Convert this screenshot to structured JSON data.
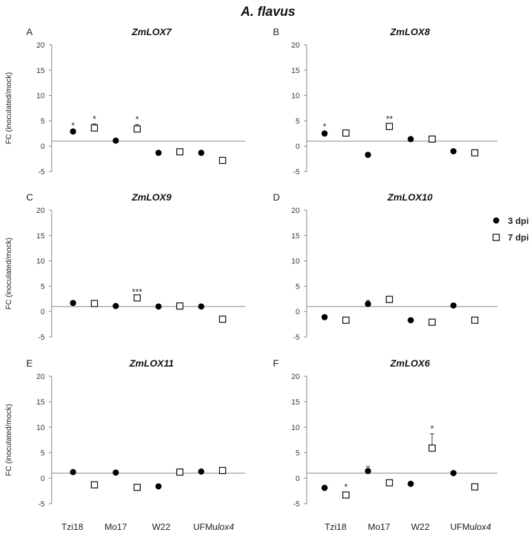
{
  "figure_title": "A. flavus",
  "legend": [
    {
      "label": "3 dpi",
      "marker": "filled-circle"
    },
    {
      "label": "7 dpi",
      "marker": "open-square"
    }
  ],
  "colors": {
    "marker": "#000000",
    "baseline": "#9a9a9a",
    "axis": "#7f7f7f"
  },
  "x_categories": [
    {
      "prefix": "Tzi18",
      "suffix": ""
    },
    {
      "prefix": "Mo17",
      "suffix": ""
    },
    {
      "prefix": "W22",
      "suffix": ""
    },
    {
      "prefix": "UFMu",
      "suffix": "lox4"
    }
  ],
  "chart_data": [
    {
      "type": "scatter",
      "letter": "A",
      "title": "ZmLOX7",
      "ylabel": "FC (inoculated/mock)",
      "yticks": [
        20,
        15,
        10,
        5,
        0,
        -5
      ],
      "ylim": [
        -5,
        20
      ],
      "baseline": 1,
      "categories": [
        "Tzi18",
        "Mo17",
        "W22",
        "UFMulox4"
      ],
      "series": [
        {
          "name": "3 dpi",
          "values": [
            2.9,
            1.1,
            -1.3,
            -1.3
          ],
          "errors": [
            0.2,
            0,
            0,
            0
          ],
          "stars": [
            "*",
            "",
            "",
            ""
          ]
        },
        {
          "name": "7 dpi",
          "values": [
            3.6,
            3.4,
            -1.1,
            -2.8
          ],
          "errors": [
            0.8,
            0.9,
            0,
            0
          ],
          "stars": [
            "*",
            "*",
            "",
            ""
          ]
        }
      ]
    },
    {
      "type": "scatter",
      "letter": "B",
      "title": "ZmLOX8",
      "ylabel": "",
      "yticks": [
        20,
        15,
        10,
        5,
        0,
        -5
      ],
      "ylim": [
        -5,
        20
      ],
      "baseline": 1,
      "categories": [
        "Tzi18",
        "Mo17",
        "W22",
        "UFMulox4"
      ],
      "series": [
        {
          "name": "3 dpi",
          "values": [
            2.5,
            -1.7,
            1.4,
            -1.0
          ],
          "errors": [
            0.4,
            0,
            0,
            0
          ],
          "stars": [
            "*",
            "",
            "",
            ""
          ]
        },
        {
          "name": "7 dpi",
          "values": [
            2.6,
            3.9,
            1.4,
            -1.3
          ],
          "errors": [
            0.4,
            0.5,
            0,
            0
          ],
          "stars": [
            "",
            "**",
            "",
            ""
          ]
        }
      ]
    },
    {
      "type": "scatter",
      "letter": "C",
      "title": "ZmLOX9",
      "ylabel": "FC (inoculated/mock)",
      "yticks": [
        20,
        15,
        10,
        5,
        0,
        -5
      ],
      "ylim": [
        -5,
        20
      ],
      "baseline": 1,
      "categories": [
        "Tzi18",
        "Mo17",
        "W22",
        "UFMulox4"
      ],
      "series": [
        {
          "name": "3 dpi",
          "values": [
            1.7,
            1.1,
            1.0,
            1.0
          ],
          "errors": [
            0,
            0,
            0,
            0
          ],
          "stars": [
            "",
            "",
            "",
            ""
          ]
        },
        {
          "name": "7 dpi",
          "values": [
            1.6,
            2.7,
            1.1,
            -1.5
          ],
          "errors": [
            0.3,
            0.2,
            0,
            0
          ],
          "stars": [
            "",
            "***",
            "",
            ""
          ]
        }
      ]
    },
    {
      "type": "scatter",
      "letter": "D",
      "title": "ZmLOX10",
      "ylabel": "",
      "yticks": [
        20,
        15,
        10,
        5,
        0,
        -5
      ],
      "ylim": [
        -5,
        20
      ],
      "baseline": 1,
      "categories": [
        "Tzi18",
        "Mo17",
        "W22",
        "UFMulox4"
      ],
      "series": [
        {
          "name": "3 dpi",
          "values": [
            -1.1,
            1.5,
            -1.7,
            1.2
          ],
          "errors": [
            0,
            0.7,
            0,
            0
          ],
          "stars": [
            "",
            "",
            "",
            ""
          ]
        },
        {
          "name": "7 dpi",
          "values": [
            -1.7,
            2.4,
            -2.1,
            -1.7
          ],
          "errors": [
            0,
            0.4,
            0,
            0
          ],
          "stars": [
            "",
            "",
            "",
            ""
          ]
        }
      ]
    },
    {
      "type": "scatter",
      "letter": "E",
      "title": "ZmLOX11",
      "ylabel": "FC (inoculated/mock)",
      "yticks": [
        20,
        15,
        10,
        5,
        0,
        -5
      ],
      "ylim": [
        -5,
        20
      ],
      "baseline": 1,
      "categories": [
        "Tzi18",
        "Mo17",
        "W22",
        "UFMulox4"
      ],
      "series": [
        {
          "name": "3 dpi",
          "values": [
            1.2,
            1.1,
            -1.6,
            1.3
          ],
          "errors": [
            0,
            0.3,
            0,
            0
          ],
          "stars": [
            "",
            "",
            "",
            ""
          ]
        },
        {
          "name": "7 dpi",
          "values": [
            -1.3,
            -1.8,
            1.2,
            1.5
          ],
          "errors": [
            0,
            0,
            0,
            0
          ],
          "stars": [
            "",
            "",
            "",
            ""
          ]
        }
      ]
    },
    {
      "type": "scatter",
      "letter": "F",
      "title": "ZmLOX6",
      "ylabel": "",
      "yticks": [
        20,
        15,
        10,
        5,
        0,
        -5
      ],
      "ylim": [
        -5,
        20
      ],
      "baseline": 1,
      "categories": [
        "Tzi18",
        "Mo17",
        "W22",
        "UFMulox4"
      ],
      "series": [
        {
          "name": "3 dpi",
          "values": [
            -1.9,
            1.4,
            -1.1,
            1.0
          ],
          "errors": [
            0,
            0.9,
            0,
            0
          ],
          "stars": [
            "",
            "",
            "",
            ""
          ]
        },
        {
          "name": "7 dpi",
          "values": [
            -3.3,
            -0.9,
            5.9,
            -1.7
          ],
          "errors": [
            0,
            0.3,
            2.8,
            0
          ],
          "stars": [
            "*",
            "",
            "*",
            ""
          ]
        }
      ]
    }
  ]
}
